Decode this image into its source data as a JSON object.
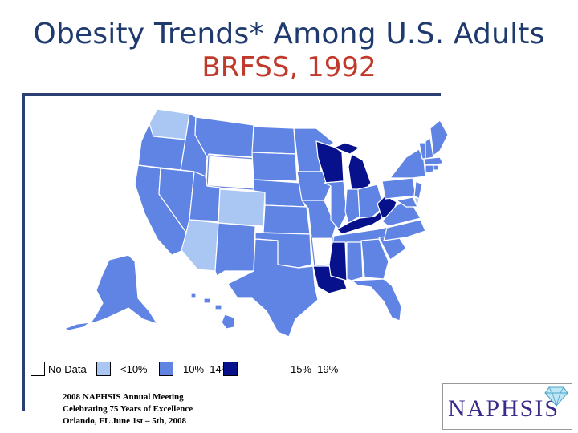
{
  "slide": {
    "title_line1": "Obesity Trends* Among U.S. Adults",
    "title_line2": "BRFSS, 1992"
  },
  "colors": {
    "no_data": "#ffffff",
    "lt10": "#a9c7f2",
    "10to14": "#5f84e4",
    "15to19": "#08118c",
    "state_lines": "#ffffff",
    "title_blue": "#1f3a6e",
    "title_red": "#c0392b"
  },
  "legend": [
    {
      "label": "No Data",
      "color": "#ffffff"
    },
    {
      "label": "<10%",
      "color": "#a9c7f2"
    },
    {
      "label": "10%–14%",
      "color": "#5f84e4"
    },
    {
      "label": "15%–19%",
      "color": "#08118c"
    }
  ],
  "footer": {
    "line1": "2008 NAPHSIS Annual Meeting",
    "line2": "Celebrating 75 Years of Excellence",
    "line3": "Orlando, FL     June 1st – 5th, 2008"
  },
  "logo": {
    "text": "NAPHSIS"
  },
  "map_categories": {
    "no_data": [
      "Wyoming",
      "Arkansas"
    ],
    "lt10": [
      "Washington",
      "Colorado",
      "Arizona"
    ],
    "15to19": [
      "Wisconsin",
      "Michigan",
      "Kentucky",
      "West Virginia",
      "Mississippi",
      "Louisiana"
    ]
  }
}
